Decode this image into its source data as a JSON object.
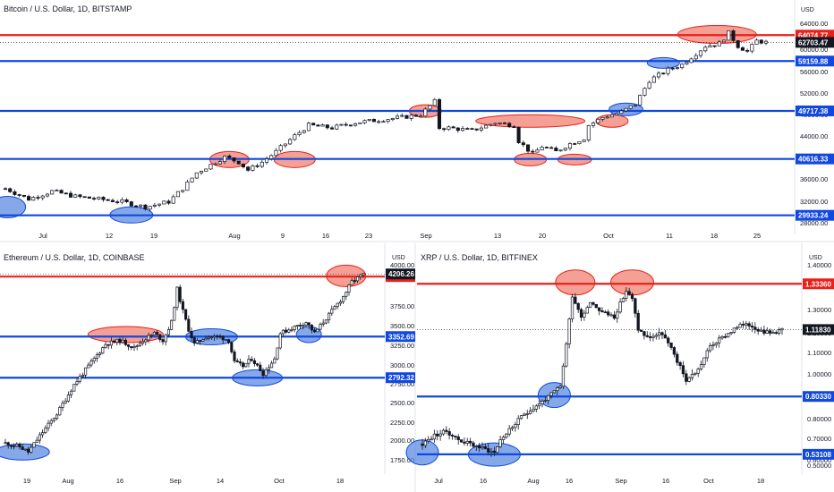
{
  "colors": {
    "support": "#1148e0",
    "resistance": "#e8211c",
    "support_fill": "#5b8be0",
    "resistance_fill": "#f08070",
    "up_candle": "#ffffff",
    "down_candle": "#131722",
    "last_tag": "#131722",
    "divider": "#e0e3eb"
  },
  "chart_data": [
    {
      "type": "candlestick",
      "title": "Bitcoin / U.S. Dollar, 1D, BITSTAMP",
      "currency": "USD",
      "x_tick_labels": [
        "Jul",
        "12",
        "19",
        "Aug",
        "9",
        "16",
        "23",
        "Sep",
        "13",
        "20",
        "Oct",
        "11",
        "18",
        "25"
      ],
      "y_tick_labels": [
        "64000.00",
        "60000.00",
        "56000.00",
        "52000.00",
        "48000.00",
        "44000.00",
        "40000.00",
        "36000.00",
        "32000.00",
        "28000.00"
      ],
      "ylim": [
        27000,
        67000
      ],
      "horizontal_levels": [
        {
          "value": 64074.77,
          "label": "64074.77",
          "role": "resistance"
        },
        {
          "value": 59159.88,
          "label": "59159.88",
          "role": "support"
        },
        {
          "value": 49717.38,
          "label": "49717.38",
          "role": "support"
        },
        {
          "value": 40616.33,
          "label": "40616.33",
          "role": "support"
        },
        {
          "value": 29933.24,
          "label": "29933.24",
          "role": "support"
        }
      ],
      "last_price": {
        "value": 62703.47,
        "label": "62703.47"
      },
      "close_path": [
        [
          0,
          35000
        ],
        [
          5,
          33000
        ],
        [
          10,
          34500
        ],
        [
          15,
          33500
        ],
        [
          20,
          33000
        ],
        [
          25,
          32500
        ],
        [
          30,
          31500
        ],
        [
          35,
          32500
        ],
        [
          38,
          35000
        ],
        [
          41,
          38000
        ],
        [
          44,
          39500
        ],
        [
          47,
          41000
        ],
        [
          50,
          40000
        ],
        [
          52,
          38500
        ],
        [
          55,
          40000
        ],
        [
          58,
          42000
        ],
        [
          62,
          45000
        ],
        [
          65,
          47000
        ],
        [
          70,
          46500
        ],
        [
          75,
          47500
        ],
        [
          80,
          48000
        ],
        [
          85,
          48500
        ],
        [
          89,
          49000
        ],
        [
          92,
          51500
        ],
        [
          93,
          46500
        ],
        [
          95,
          46500
        ],
        [
          100,
          46000
        ],
        [
          105,
          47500
        ],
        [
          109,
          47000
        ],
        [
          110,
          44000
        ],
        [
          113,
          41500
        ],
        [
          115,
          43000
        ],
        [
          118,
          42000
        ],
        [
          121,
          43500
        ],
        [
          124,
          44500
        ],
        [
          125,
          47000
        ],
        [
          128,
          48500
        ],
        [
          132,
          49500
        ],
        [
          135,
          51000
        ],
        [
          138,
          55500
        ],
        [
          142,
          57500
        ],
        [
          145,
          58500
        ],
        [
          150,
          62000
        ],
        [
          153,
          62500
        ],
        [
          155,
          64500
        ],
        [
          157,
          62000
        ],
        [
          159,
          61000
        ],
        [
          161,
          63000
        ],
        [
          163,
          62703
        ]
      ],
      "ellipses": [
        {
          "x": 0.5,
          "y": 31500,
          "role": "support"
        },
        {
          "x": 27,
          "y": 30000,
          "role": "support"
        },
        {
          "x": 48,
          "y": 40500,
          "role": "resistance"
        },
        {
          "x": 62,
          "y": 40500,
          "role": "resistance"
        },
        {
          "x": 90,
          "y": 49700,
          "role": "resistance"
        },
        {
          "x": 112.5,
          "y": 47800,
          "role": "resistance"
        },
        {
          "x": 112.5,
          "y": 40500,
          "role": "resistance"
        },
        {
          "x": 122,
          "y": 40500,
          "role": "resistance"
        },
        {
          "x": 130,
          "y": 47800,
          "role": "resistance"
        },
        {
          "x": 133,
          "y": 50000,
          "role": "support"
        },
        {
          "x": 141,
          "y": 58800,
          "role": "support"
        },
        {
          "x": 152.5,
          "y": 64200,
          "role": "resistance"
        }
      ]
    },
    {
      "type": "candlestick",
      "title": "Ethereum / U.S. Dollar, 1D, COINBASE",
      "currency": "USD",
      "x_tick_labels": [
        "19",
        "Aug",
        "16",
        "Sep",
        "14",
        "Oct",
        "18"
      ],
      "y_tick_labels": [
        "4000.00",
        "3750.00",
        "3500.00",
        "3250.00",
        "3000.00",
        "2750.00",
        "2500.00",
        "2250.00",
        "2000.00",
        "1750.00"
      ],
      "ylim": [
        1600,
        4380
      ],
      "horizontal_levels": [
        {
          "value": 4170.51,
          "label": "4170.51",
          "role": "resistance"
        },
        {
          "value": 3352.69,
          "label": "3352.69",
          "role": "support"
        },
        {
          "value": 2792.32,
          "label": "2792.32",
          "role": "support"
        }
      ],
      "last_price": {
        "value": 4206.26,
        "label": "4206.26"
      },
      "close_path": [
        [
          0,
          1900
        ],
        [
          5,
          1850
        ],
        [
          8,
          1780
        ],
        [
          12,
          2000
        ],
        [
          18,
          2300
        ],
        [
          24,
          2700
        ],
        [
          30,
          3000
        ],
        [
          35,
          3250
        ],
        [
          40,
          3300
        ],
        [
          45,
          3200
        ],
        [
          48,
          3300
        ],
        [
          52,
          3400
        ],
        [
          55,
          3300
        ],
        [
          58,
          3550
        ],
        [
          60,
          4000
        ],
        [
          62,
          3700
        ],
        [
          64,
          3450
        ],
        [
          66,
          3250
        ],
        [
          70,
          3350
        ],
        [
          75,
          3350
        ],
        [
          78,
          3300
        ],
        [
          80,
          3000
        ],
        [
          83,
          2950
        ],
        [
          86,
          3050
        ],
        [
          90,
          2850
        ],
        [
          94,
          3050
        ],
        [
          96,
          3400
        ],
        [
          99,
          3450
        ],
        [
          102,
          3500
        ],
        [
          105,
          3550
        ],
        [
          108,
          3400
        ],
        [
          112,
          3600
        ],
        [
          115,
          3750
        ],
        [
          118,
          3900
        ],
        [
          121,
          4100
        ],
        [
          123,
          4150
        ],
        [
          125,
          4206
        ]
      ],
      "ellipses": [
        {
          "x": 6,
          "y": 1780,
          "role": "support"
        },
        {
          "x": 42,
          "y": 3380,
          "role": "resistance"
        },
        {
          "x": 72,
          "y": 3350,
          "role": "support"
        },
        {
          "x": 88,
          "y": 2790,
          "role": "support"
        },
        {
          "x": 106,
          "y": 3380,
          "role": "support"
        },
        {
          "x": 119,
          "y": 4180,
          "role": "resistance"
        }
      ]
    },
    {
      "type": "candlestick",
      "title": "XRP / U.S. Dollar, 1D, BITFINEX",
      "currency": "USD",
      "x_tick_labels": [
        "Jul",
        "16",
        "Aug",
        "16",
        "Sep",
        "16",
        "Oct",
        "18"
      ],
      "y_tick_labels": [
        "1.40000",
        "1.30000",
        "1.20000",
        "1.10000",
        "1.00000",
        "0.90000",
        "0.80000",
        "0.70000",
        "0.60000",
        "0.50000"
      ],
      "ylim": [
        0.48,
        1.44
      ],
      "horizontal_levels": [
        {
          "value": 1.3336,
          "label": "1.33360",
          "role": "resistance"
        },
        {
          "value": 1.1183,
          "label": "1.11830",
          "role": "last"
        },
        {
          "value": 0.8033,
          "label": "0.80330",
          "role": "support"
        },
        {
          "value": 0.53108,
          "label": "0.53108",
          "role": "support"
        }
      ],
      "last_price": {
        "value": 1.1183,
        "label": "1.11830"
      },
      "close_path": [
        [
          0,
          0.58
        ],
        [
          4,
          0.62
        ],
        [
          8,
          0.64
        ],
        [
          12,
          0.6
        ],
        [
          16,
          0.58
        ],
        [
          20,
          0.56
        ],
        [
          24,
          0.54
        ],
        [
          26,
          0.6
        ],
        [
          30,
          0.66
        ],
        [
          34,
          0.72
        ],
        [
          38,
          0.76
        ],
        [
          42,
          0.8
        ],
        [
          46,
          0.85
        ],
        [
          48,
          1.05
        ],
        [
          50,
          1.28
        ],
        [
          53,
          1.18
        ],
        [
          56,
          1.25
        ],
        [
          60,
          1.2
        ],
        [
          64,
          1.18
        ],
        [
          68,
          1.3
        ],
        [
          70,
          1.26
        ],
        [
          72,
          1.12
        ],
        [
          75,
          1.08
        ],
        [
          80,
          1.1
        ],
        [
          84,
          1.0
        ],
        [
          88,
          0.88
        ],
        [
          92,
          0.93
        ],
        [
          96,
          1.04
        ],
        [
          100,
          1.08
        ],
        [
          104,
          1.12
        ],
        [
          108,
          1.15
        ],
        [
          112,
          1.12
        ],
        [
          116,
          1.1
        ],
        [
          120,
          1.12
        ]
      ],
      "ellipses": [
        {
          "x": 0,
          "y": 0.54,
          "role": "support"
        },
        {
          "x": 24,
          "y": 0.53,
          "role": "support"
        },
        {
          "x": 44,
          "y": 0.81,
          "role": "support"
        },
        {
          "x": 51,
          "y": 1.34,
          "role": "resistance"
        },
        {
          "x": 70,
          "y": 1.34,
          "role": "resistance"
        }
      ]
    }
  ]
}
